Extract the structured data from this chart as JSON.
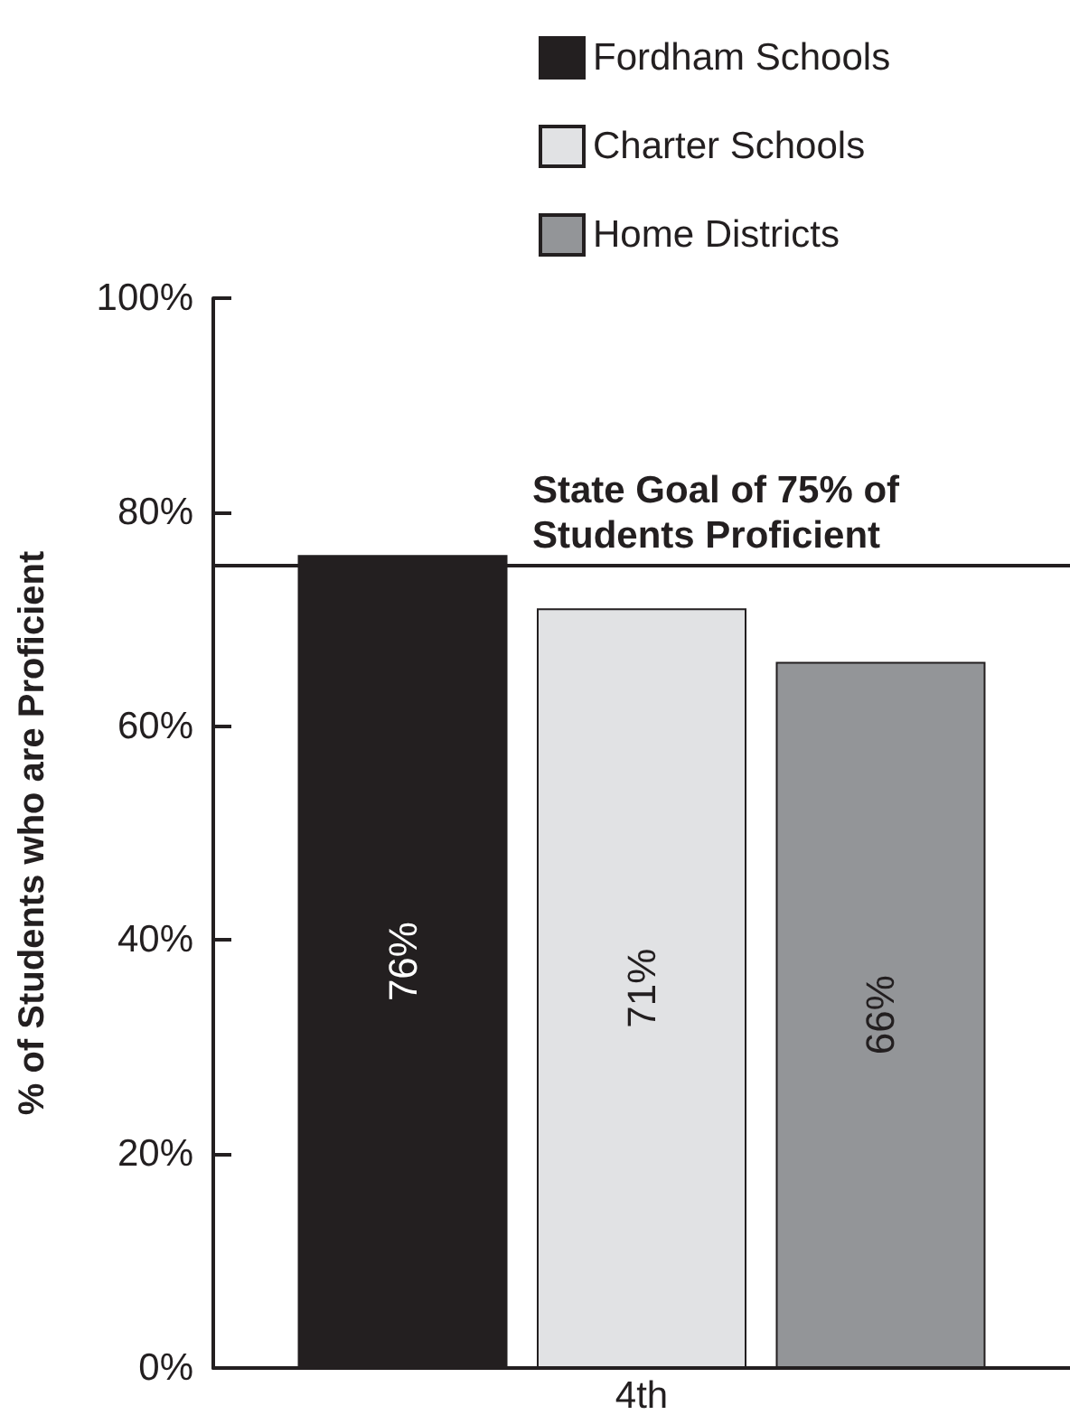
{
  "chart_data": {
    "type": "bar",
    "categories": [
      "4th"
    ],
    "series": [
      {
        "name": "Fordham Schools",
        "color": "#231f20",
        "values": [
          76
        ],
        "value_labels": [
          "76%"
        ]
      },
      {
        "name": "Charter Schools",
        "color": "#e1e2e4",
        "values": [
          71
        ],
        "value_labels": [
          "71%"
        ]
      },
      {
        "name": "Home Districts",
        "color": "#939598",
        "values": [
          66
        ],
        "value_labels": [
          "66%"
        ]
      }
    ],
    "ylabel": "% of Students who are Proficient",
    "ylim": [
      0,
      100
    ],
    "yticks": [
      {
        "value": 0,
        "label": "0%"
      },
      {
        "value": 20,
        "label": "20%"
      },
      {
        "value": 40,
        "label": "40%"
      },
      {
        "value": 60,
        "label": "60%"
      },
      {
        "value": 80,
        "label": "80%"
      },
      {
        "value": 100,
        "label": "100%"
      }
    ],
    "ref_lines": [
      {
        "axis": "y",
        "value": 75,
        "label": "State Goal of 75% of Students Proficient",
        "color": "#231f20"
      }
    ],
    "legend": "top"
  }
}
